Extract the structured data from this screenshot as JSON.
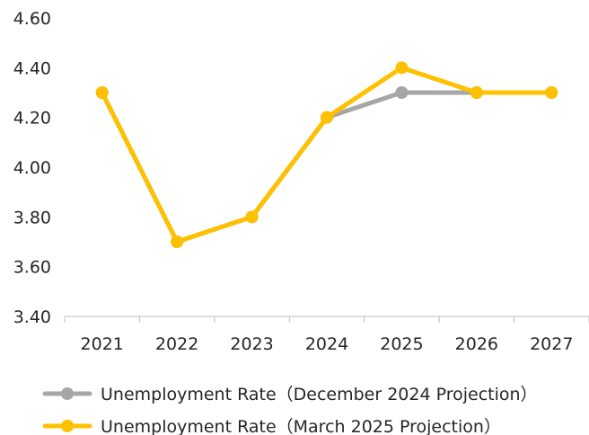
{
  "chart_data": {
    "type": "line",
    "title": "",
    "xlabel": "",
    "ylabel": "",
    "categories": [
      "2021",
      "2022",
      "2023",
      "2024",
      "2025",
      "2026",
      "2027"
    ],
    "ylim": [
      3.4,
      4.6
    ],
    "yticks": [
      "3.40",
      "3.60",
      "3.80",
      "4.00",
      "4.20",
      "4.40",
      "4.60"
    ],
    "grid": false,
    "legend_position": "bottom",
    "series": [
      {
        "name": "Unemployment Rate（December 2024 Projection）",
        "color": "#A6A6A6",
        "values": [
          4.3,
          3.7,
          3.8,
          4.2,
          4.3,
          4.3,
          4.3
        ]
      },
      {
        "name": "Unemployment Rate（March 2025 Projection）",
        "color": "#FFC000",
        "values": [
          4.3,
          3.7,
          3.8,
          4.2,
          4.4,
          4.3,
          4.3
        ]
      }
    ]
  }
}
